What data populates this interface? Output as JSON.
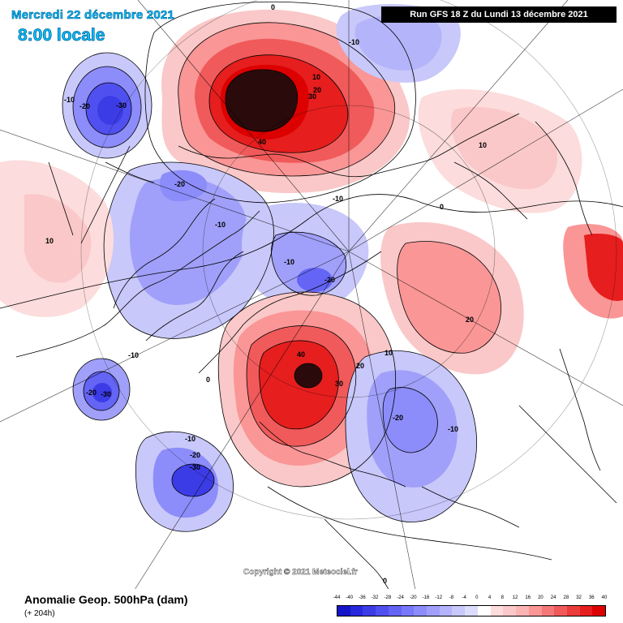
{
  "header": {
    "date": "Mercredi 22 décembre 2021",
    "time": "8:00 locale",
    "run": "Run GFS 18 Z du Lundi 13 décembre 2021"
  },
  "copyright": "Copyright © 2021 Meteociel.fr",
  "footer": {
    "title": "Anomalie Geop. 500hPa (dam)",
    "subtitle": "(+ 204h)"
  },
  "legend": {
    "labels": [
      "-44",
      "-40",
      "-36",
      "-32",
      "-28",
      "-24",
      "-20",
      "-16",
      "-12",
      "-8",
      "-4",
      "0",
      "4",
      "8",
      "12",
      "16",
      "20",
      "24",
      "28",
      "32",
      "36",
      "40"
    ],
    "colors": [
      "#1414c8",
      "#2828dc",
      "#3c3ce6",
      "#5050f0",
      "#6464f5",
      "#7878fa",
      "#8c8cfa",
      "#a0a0fa",
      "#b4b4fa",
      "#c8c8fa",
      "#dcdcfc",
      "#ffffff",
      "#fcdcdc",
      "#fac8c8",
      "#fab4b4",
      "#fa9696",
      "#f57878",
      "#f05a5a",
      "#eb3c3c",
      "#e61e1e",
      "#dc0000"
    ]
  },
  "contour_labels": [
    {
      "id": "label-0-top",
      "text": "0"
    },
    {
      "id": "label-m10-nw",
      "text": "-10"
    },
    {
      "id": "label-m20-nw",
      "text": "-20"
    },
    {
      "id": "label-m30-nw",
      "text": "-30"
    },
    {
      "id": "label-10-pacific",
      "text": "10"
    },
    {
      "id": "label-20-pacific",
      "text": "20"
    },
    {
      "id": "label-30-pacific",
      "text": "30"
    },
    {
      "id": "label-40-pacific",
      "text": "40"
    },
    {
      "id": "label-m10-ne",
      "text": "-10"
    },
    {
      "id": "label-10-asia",
      "text": "10"
    },
    {
      "id": "label-0-asia",
      "text": "0"
    },
    {
      "id": "label-m20-canada",
      "text": "-20"
    },
    {
      "id": "label-m10-canada",
      "text": "-10"
    },
    {
      "id": "label-10-usa",
      "text": "10"
    },
    {
      "id": "label-m10-arctic",
      "text": "-10"
    },
    {
      "id": "label-m10-greenland",
      "text": "-10"
    },
    {
      "id": "label-m20-greenland",
      "text": "-20"
    },
    {
      "id": "label-20-siberia",
      "text": "20"
    },
    {
      "id": "label-m10-labrador",
      "text": "-10"
    },
    {
      "id": "label-m20-atlantic",
      "text": "-20"
    },
    {
      "id": "label-m30-atlantic",
      "text": "-30"
    },
    {
      "id": "label-40-europe",
      "text": "40"
    },
    {
      "id": "label-30-europe",
      "text": "30"
    },
    {
      "id": "label-20-europe",
      "text": "20"
    },
    {
      "id": "label-10-europe",
      "text": "10"
    },
    {
      "id": "label-0-europe",
      "text": "0"
    },
    {
      "id": "label-m20-russia",
      "text": "-20"
    },
    {
      "id": "label-m10-russia",
      "text": "-10"
    },
    {
      "id": "label-m10-atlantic-s",
      "text": "-10"
    },
    {
      "id": "label-m20-atlantic-s",
      "text": "-20"
    },
    {
      "id": "label-m30-atlantic-s",
      "text": "-30"
    },
    {
      "id": "label-0-bottom",
      "text": "0"
    }
  ]
}
